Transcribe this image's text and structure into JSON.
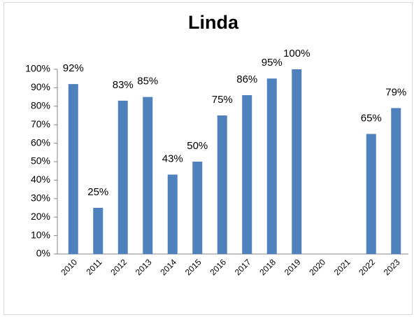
{
  "chart_data": {
    "type": "bar",
    "title": "Linda",
    "categories": [
      "2010",
      "2011",
      "2012",
      "2013",
      "2014",
      "2015",
      "2016",
      "2017",
      "2018",
      "2019",
      "2020",
      "2021",
      "2022",
      "2023"
    ],
    "values": [
      92,
      25,
      83,
      85,
      43,
      50,
      75,
      86,
      95,
      100,
      null,
      null,
      65,
      79
    ],
    "value_labels": [
      "92%",
      "25%",
      "83%",
      "85%",
      "43%",
      "50%",
      "75%",
      "86%",
      "95%",
      "100%",
      null,
      null,
      "65%",
      "79%"
    ],
    "color": "#4f81bd",
    "ylim": [
      0,
      100
    ],
    "yticks": [
      {
        "value": 0,
        "label": "0%"
      },
      {
        "value": 10,
        "label": "10%"
      },
      {
        "value": 20,
        "label": "20%"
      },
      {
        "value": 30,
        "label": "30%"
      },
      {
        "value": 40,
        "label": "40%"
      },
      {
        "value": 50,
        "label": "50%"
      },
      {
        "value": 60,
        "label": "60%"
      },
      {
        "value": 70,
        "label": "70%"
      },
      {
        "value": 80,
        "label": "80%"
      },
      {
        "value": 90,
        "label": "90%"
      },
      {
        "value": 100,
        "label": "100%"
      }
    ],
    "grid": false
  }
}
